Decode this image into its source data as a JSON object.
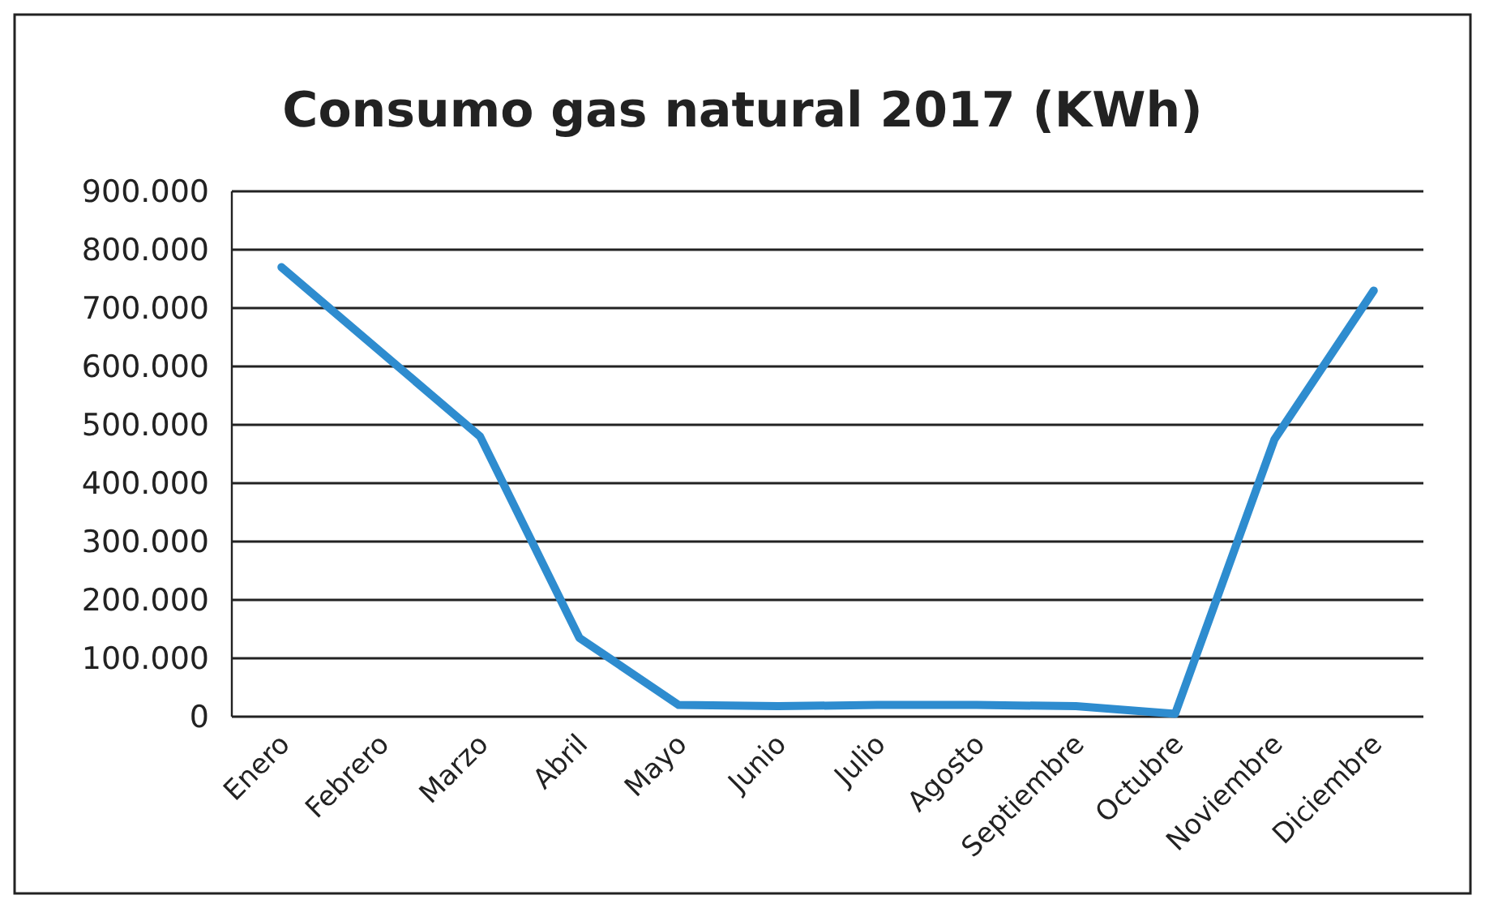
{
  "chart_data": {
    "type": "line",
    "title": "Consumo gas natural 2017 (KWh)",
    "categories": [
      "Enero",
      "Febrero",
      "Marzo",
      "Abril",
      "Mayo",
      "Junio",
      "Julio",
      "Agosto",
      "Septiembre",
      "Octubre",
      "Noviembre",
      "Diciembre"
    ],
    "series": [
      {
        "color": "#2e8ccf",
        "values": [
          770000,
          625000,
          480000,
          135000,
          20000,
          18000,
          20000,
          20000,
          18000,
          5000,
          475000,
          730000
        ]
      }
    ],
    "ylim": [
      0,
      900000
    ],
    "yticks": [
      0,
      {
        "value": 100000,
        "label": "100.000"
      },
      {
        "value": 200000,
        "label": "200.000"
      },
      {
        "value": 300000,
        "label": "300.000"
      },
      {
        "value": 400000,
        "label": "400.000"
      },
      {
        "value": 500000,
        "label": "500.000"
      },
      {
        "value": 600000,
        "label": "600.000"
      },
      {
        "value": 700000,
        "label": "700.000"
      },
      {
        "value": 800000,
        "label": "800.000"
      },
      {
        "value": 900000,
        "label": "900.000"
      }
    ],
    "grid": "y",
    "marker": "none",
    "line_style": "solid"
  }
}
